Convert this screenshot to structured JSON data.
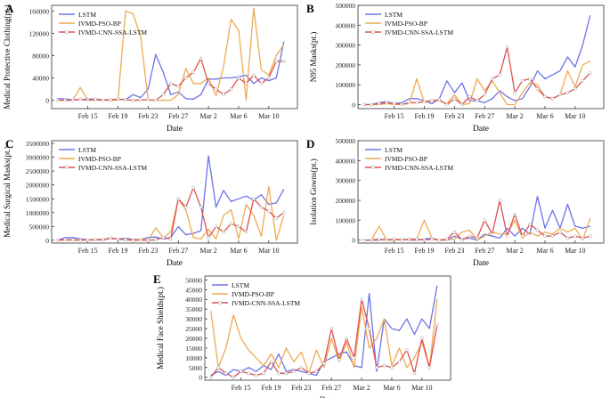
{
  "figure": {
    "colors": {
      "LSTM": "#6b73e8",
      "IVMD-PSO-BP": "#eeaa52",
      "IVMD-CNN-SSA-LSTM": "#e05050"
    },
    "legend_entries": [
      "LSTM",
      "IVMD-PSO-BP",
      "IVMD-CNN-SSA-LSTM"
    ]
  },
  "chart_data": [
    {
      "panel": "A",
      "type": "line",
      "ylabel": "Medical Protective Clothing(pt.)",
      "xlabel": "Date",
      "ylim": [
        -15000,
        170000
      ],
      "yticks": [
        0,
        40000,
        80000,
        120000,
        160000
      ],
      "ytick_labels": [
        "0",
        "40000",
        "80000",
        "120000",
        "160000"
      ],
      "xlim": [
        -0.8,
        31.8
      ],
      "xticks": [
        4,
        8,
        12,
        16,
        20,
        24,
        28
      ],
      "xtick_labels": [
        "Feb 15",
        "Feb 19",
        "Feb 23",
        "Feb 27",
        "Mar 2",
        "Mar 6",
        "Mar 10"
      ],
      "series": [
        {
          "name": "LSTM",
          "values": [
            3000,
            2000,
            1000,
            1000,
            2000,
            2000,
            1000,
            1000,
            1500,
            1000,
            10000,
            5000,
            20000,
            82000,
            50000,
            10000,
            15000,
            3000,
            2000,
            10000,
            38000,
            38000,
            40000,
            40000,
            42000,
            45000,
            30000,
            40000,
            35000,
            40000,
            105000
          ]
        },
        {
          "name": "IVMD-PSO-BP",
          "values": [
            0,
            0,
            0,
            23000,
            0,
            0,
            0,
            0,
            0,
            160000,
            155000,
            115000,
            0,
            0,
            0,
            0,
            10000,
            57000,
            30000,
            30000,
            40000,
            8000,
            60000,
            145000,
            125000,
            0,
            165000,
            55000,
            45000,
            80000,
            100000
          ]
        },
        {
          "name": "IVMD-CNN-SSA-LSTM",
          "values": [
            0,
            0,
            0,
            2000,
            0,
            2000,
            0,
            1000,
            2000,
            1000,
            0,
            500,
            1000,
            0,
            10000,
            30000,
            25000,
            40000,
            50000,
            75000,
            30000,
            20000,
            10000,
            20000,
            40000,
            30000,
            45000,
            30000,
            40000,
            70000,
            70000
          ]
        }
      ]
    },
    {
      "panel": "B",
      "type": "line",
      "ylabel": "N95 Masks(pt.)",
      "xlabel": "Date",
      "ylim": [
        -20000,
        500000
      ],
      "yticks": [
        0,
        100000,
        200000,
        300000,
        400000,
        500000
      ],
      "ytick_labels": [
        "0",
        "100000",
        "200000",
        "300000",
        "400000",
        "500000"
      ],
      "xlim": [
        -0.8,
        31.8
      ],
      "xticks": [
        4,
        8,
        12,
        16,
        20,
        24,
        28
      ],
      "xtick_labels": [
        "Feb 15",
        "Feb 19",
        "Feb 23",
        "Feb 27",
        "Mar 2",
        "Mar 6",
        "Mar 10"
      ],
      "series": [
        {
          "name": "LSTM",
          "values": [
            0,
            0,
            10000,
            15000,
            5000,
            10000,
            30000,
            30000,
            20000,
            5000,
            30000,
            120000,
            60000,
            110000,
            20000,
            20000,
            10000,
            30000,
            70000,
            40000,
            20000,
            30000,
            90000,
            170000,
            130000,
            150000,
            170000,
            240000,
            190000,
            300000,
            450000
          ]
        },
        {
          "name": "IVMD-PSO-BP",
          "values": [
            0,
            0,
            0,
            5000,
            0,
            0,
            5000,
            130000,
            10000,
            20000,
            20000,
            5000,
            50000,
            0,
            5000,
            130000,
            70000,
            120000,
            60000,
            0,
            0,
            60000,
            110000,
            100000,
            40000,
            30000,
            50000,
            170000,
            90000,
            200000,
            220000
          ]
        },
        {
          "name": "IVMD-CNN-SSA-LSTM",
          "values": [
            0,
            0,
            5000,
            10000,
            5000,
            2000,
            10000,
            10000,
            15000,
            20000,
            25000,
            0,
            30000,
            0,
            40000,
            20000,
            50000,
            130000,
            150000,
            290000,
            60000,
            120000,
            130000,
            80000,
            40000,
            30000,
            50000,
            60000,
            80000,
            120000,
            160000
          ]
        }
      ]
    },
    {
      "panel": "C",
      "type": "line",
      "ylabel": "Medical Surgical Masks(pt.)",
      "xlabel": "Date",
      "ylim": [
        -100000,
        3600000
      ],
      "yticks": [
        0,
        500000,
        1000000,
        1500000,
        2000000,
        2500000,
        3000000,
        3500000
      ],
      "ytick_labels": [
        "0",
        "500000",
        "1000000",
        "1500000",
        "2000000",
        "2500000",
        "3000000",
        "3500000"
      ],
      "xlim": [
        -0.8,
        31.8
      ],
      "xticks": [
        4,
        8,
        12,
        16,
        20,
        24,
        28
      ],
      "xtick_labels": [
        "Feb 15",
        "Feb 19",
        "Feb 23",
        "Feb 27",
        "Mar 2",
        "Mar 6",
        "Mar 10"
      ],
      "series": [
        {
          "name": "LSTM",
          "values": [
            0,
            100000,
            100000,
            50000,
            20000,
            30000,
            40000,
            60000,
            50000,
            70000,
            40000,
            30000,
            100000,
            120000,
            50000,
            100000,
            500000,
            200000,
            250000,
            350000,
            3050000,
            1200000,
            1800000,
            1400000,
            1500000,
            1600000,
            1450000,
            1650000,
            1300000,
            1350000,
            1850000
          ]
        },
        {
          "name": "IVMD-PSO-BP",
          "values": [
            0,
            0,
            0,
            20000,
            10000,
            30000,
            20000,
            100000,
            30000,
            50000,
            0,
            50000,
            0,
            450000,
            100000,
            300000,
            1500000,
            1100000,
            100000,
            50000,
            400000,
            50000,
            900000,
            1100000,
            50000,
            1300000,
            900000,
            150000,
            1950000,
            0,
            900000
          ]
        },
        {
          "name": "IVMD-CNN-SSA-LSTM",
          "values": [
            0,
            30000,
            20000,
            0,
            10000,
            20000,
            10000,
            80000,
            40000,
            20000,
            0,
            10000,
            0,
            20000,
            100000,
            50000,
            1500000,
            1200000,
            1900000,
            1200000,
            100000,
            500000,
            300000,
            600000,
            500000,
            300000,
            1500000,
            1200000,
            1050000,
            800000,
            1000000
          ]
        }
      ]
    },
    {
      "panel": "D",
      "type": "line",
      "ylabel": "Isolation Gowns(pt.)",
      "xlabel": "Date",
      "ylim": [
        -15000,
        500000
      ],
      "yticks": [
        0,
        100000,
        200000,
        300000,
        400000,
        500000
      ],
      "ytick_labels": [
        "0",
        "100000",
        "200000",
        "300000",
        "400000",
        "500000"
      ],
      "xlim": [
        -0.8,
        31.8
      ],
      "xticks": [
        4,
        8,
        12,
        16,
        20,
        24,
        28
      ],
      "xtick_labels": [
        "Feb 15",
        "Feb 19",
        "Feb 23",
        "Feb 27",
        "Mar 2",
        "Mar 6",
        "Mar 10"
      ],
      "series": [
        {
          "name": "LSTM",
          "values": [
            0,
            0,
            0,
            5000,
            0,
            5000,
            0,
            0,
            5000,
            10000,
            0,
            0,
            20000,
            5000,
            10000,
            0,
            30000,
            20000,
            10000,
            60000,
            20000,
            60000,
            30000,
            220000,
            60000,
            150000,
            60000,
            180000,
            70000,
            60000,
            70000
          ]
        },
        {
          "name": "IVMD-PSO-BP",
          "values": [
            0,
            0,
            70000,
            0,
            0,
            5000,
            0,
            5000,
            100000,
            10000,
            0,
            0,
            5000,
            40000,
            50000,
            0,
            20000,
            40000,
            30000,
            30000,
            100000,
            10000,
            40000,
            20000,
            40000,
            30000,
            60000,
            40000,
            60000,
            0,
            110000
          ]
        },
        {
          "name": "IVMD-CNN-SSA-LSTM",
          "values": [
            0,
            0,
            5000,
            0,
            5000,
            0,
            5000,
            5000,
            0,
            5000,
            0,
            5000,
            40000,
            0,
            20000,
            10000,
            100000,
            30000,
            200000,
            20000,
            130000,
            20000,
            80000,
            50000,
            20000,
            20000,
            40000,
            10000,
            20000,
            10000,
            20000
          ]
        }
      ]
    },
    {
      "panel": "E",
      "type": "line",
      "ylabel": "Medical Face Shields(pt.)",
      "xlabel": "Date",
      "ylim": [
        -1500,
        52000
      ],
      "yticks": [
        0,
        5000,
        10000,
        15000,
        20000,
        25000,
        30000,
        35000,
        40000,
        45000,
        50000
      ],
      "ytick_labels": [
        "0",
        "5000",
        "10000",
        "15000",
        "20000",
        "25000",
        "30000",
        "35000",
        "40000",
        "45000",
        "50000"
      ],
      "xlim": [
        -0.8,
        31.8
      ],
      "xticks": [
        4,
        8,
        12,
        16,
        20,
        24,
        28
      ],
      "xtick_labels": [
        "Feb 15",
        "Feb 19",
        "Feb 23",
        "Feb 27",
        "Mar 2",
        "Mar 6",
        "Mar 10"
      ],
      "series": [
        {
          "name": "LSTM",
          "values": [
            1000,
            3000,
            1000,
            4000,
            3000,
            5000,
            3000,
            6000,
            4000,
            12000,
            3000,
            4000,
            3000,
            2000,
            1000,
            8000,
            10000,
            12000,
            13000,
            6000,
            5000,
            43000,
            3000,
            30000,
            25000,
            24000,
            30000,
            22000,
            30000,
            25000,
            47000
          ]
        },
        {
          "name": "IVMD-PSO-BP",
          "values": [
            34000,
            5000,
            15000,
            32000,
            20000,
            14000,
            10000,
            6000,
            12000,
            5000,
            15000,
            8000,
            13000,
            2000,
            14000,
            5000,
            20000,
            8000,
            18000,
            5000,
            36000,
            15000,
            20000,
            30000,
            6000,
            15000,
            5000,
            10000,
            18000,
            5000,
            40000
          ]
        },
        {
          "name": "IVMD-CNN-SSA-LSTM",
          "values": [
            0,
            5000,
            2000,
            0,
            3000,
            2000,
            1000,
            2000,
            8000,
            2000,
            2000,
            3000,
            5000,
            2000,
            3000,
            7000,
            25000,
            9000,
            20000,
            10000,
            40000,
            25000,
            5000,
            6000,
            5000,
            8000,
            14000,
            2000,
            20000,
            5000,
            27000
          ]
        }
      ]
    }
  ],
  "panels_markup_order": [
    "A",
    "B",
    "C",
    "D",
    "E"
  ]
}
